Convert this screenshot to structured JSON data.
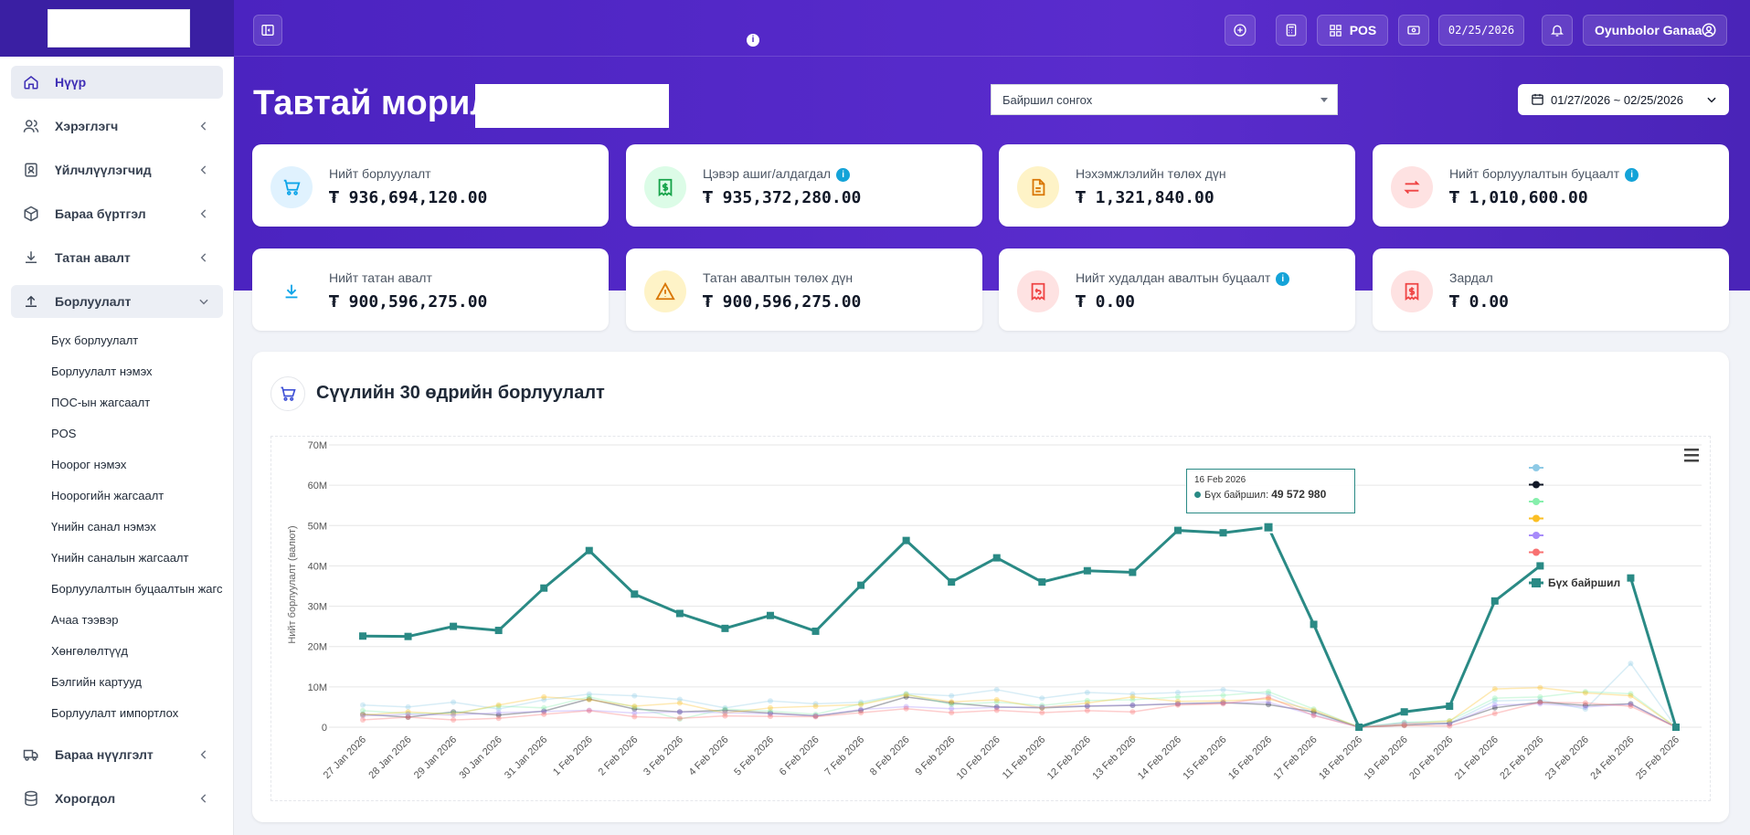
{
  "sidebar": {
    "items": [
      {
        "label": "Нүүр",
        "icon": "home-icon",
        "active": true
      },
      {
        "label": "Хэрэглэгч",
        "icon": "users-icon"
      },
      {
        "label": "Үйлчлүүлэгчид",
        "icon": "id-card-icon"
      },
      {
        "label": "Бараа бүртгэл",
        "icon": "box-icon"
      },
      {
        "label": "Татан авалт",
        "icon": "download-icon"
      },
      {
        "label": "Борлуулалт",
        "icon": "upload-icon",
        "open": true
      }
    ],
    "sub_items": [
      "Бүх борлуулалт",
      "Борлуулалт нэмэх",
      "ПОС-ын жагсаалт",
      "POS",
      "Ноорог нэмэх",
      "Ноорогийн жагсаалт",
      "Үнийн санал нэмэх",
      "Үнийн саналын жагсаалт",
      "Борлуулалтын буцаалтын жагсаалт",
      "Ачаа тээвэр",
      "Хөнгөлөлтүүд",
      "Бэлгийн картууд",
      "Борлуулалт импортлох"
    ],
    "bottom_items": [
      {
        "label": "Бараа нүүлгэлт",
        "icon": "truck-icon"
      },
      {
        "label": "Хорогдол",
        "icon": "database-icon"
      }
    ]
  },
  "header": {
    "pos_label": "POS",
    "date": "02/25/2026",
    "user_name": "Oyunbolor Ganaa",
    "welcome": "Тавтай морил",
    "location_placeholder": "Байршил сонгох",
    "date_range": "01/27/2026 ~ 02/25/2026"
  },
  "cards": [
    {
      "label": "Нийт борлуулалт",
      "value": "₮ 936,694,120.00",
      "info": false,
      "color": "#0ea5e9",
      "bg": "#e0f2fe"
    },
    {
      "label": "Цэвэр ашиг/алдагдал",
      "value": "₮ 935,372,280.00",
      "info": true,
      "color": "#16a34a",
      "bg": "#dcfce7"
    },
    {
      "label": "Нэхэмжлэлийн төлөх дүн",
      "value": "₮ 1,321,840.00",
      "info": false,
      "color": "#d97706",
      "bg": "#fef3c7"
    },
    {
      "label": "Нийт борлуулалтын буцаалт",
      "value": "₮ 1,010,600.00",
      "info": true,
      "color": "#ef4444",
      "bg": "#fee2e2"
    },
    {
      "label": "Нийт татан авалт",
      "value": "₮ 900,596,275.00",
      "info": false,
      "color": "#0ea5e9",
      "bg": "#ffffff"
    },
    {
      "label": "Татан авалтын төлөх дүн",
      "value": "₮ 900,596,275.00",
      "info": false,
      "color": "#d97706",
      "bg": "#fef3c7"
    },
    {
      "label": "Нийт худалдан авалтын буцаалт",
      "value": "₮ 0.00",
      "info": true,
      "color": "#ef4444",
      "bg": "#fee2e2"
    },
    {
      "label": "Зардал",
      "value": "₮ 0.00",
      "info": false,
      "color": "#ef4444",
      "bg": "#fee2e2"
    }
  ],
  "chart_title": "Сүүлийн 30 өдрийн борлуулалт",
  "tooltip": {
    "date": "16 Feb 2026",
    "series": "Бүх байршил:",
    "value": "49 572 980"
  },
  "chart_data": {
    "type": "line",
    "title": "Сүүлийн 30 өдрийн борлуулалт",
    "ylabel": "Нийт борлуулалт (валют)",
    "ylim": [
      0,
      70000000
    ],
    "yticks": [
      "0",
      "10M",
      "20M",
      "30M",
      "40M",
      "50M",
      "60M",
      "70M"
    ],
    "categories": [
      "27 Jan 2026",
      "28 Jan 2026",
      "29 Jan 2026",
      "30 Jan 2026",
      "31 Jan 2026",
      "1 Feb 2026",
      "2 Feb 2026",
      "3 Feb 2026",
      "4 Feb 2026",
      "5 Feb 2026",
      "6 Feb 2026",
      "7 Feb 2026",
      "8 Feb 2026",
      "9 Feb 2026",
      "10 Feb 2026",
      "11 Feb 2026",
      "12 Feb 2026",
      "13 Feb 2026",
      "14 Feb 2026",
      "15 Feb 2026",
      "16 Feb 2026",
      "17 Feb 2026",
      "18 Feb 2026",
      "19 Feb 2026",
      "20 Feb 2026",
      "21 Feb 2026",
      "22 Feb 2026",
      "23 Feb 2026",
      "24 Feb 2026",
      "25 Feb 2026"
    ],
    "series": [
      {
        "name": "Бүх байршил",
        "color": "#2a8a85",
        "values": [
          22600000,
          22500000,
          25000000,
          24000000,
          34500000,
          43800000,
          33000000,
          28200000,
          24500000,
          27700000,
          23800000,
          35200000,
          46300000,
          36000000,
          42000000,
          36000000,
          38800000,
          38400000,
          48800000,
          48200000,
          49572980,
          25500000,
          0,
          3800000,
          5200000,
          31300000,
          40000000,
          null,
          37000000,
          0
        ]
      },
      {
        "color": "#8ecae6",
        "values": [
          5500000,
          5000000,
          6200000,
          4500000,
          6800000,
          8200000,
          7800000,
          6900000,
          4800000,
          6500000,
          5800000,
          6200000,
          8300000,
          7800000,
          9300000,
          7200000,
          8600000,
          8200000,
          8600000,
          9300000,
          8200000,
          3500000,
          0,
          1200000,
          1000000,
          6500000,
          6800000,
          4500000,
          15800000,
          0
        ]
      },
      {
        "color": "#111827",
        "values": [
          3200000,
          2500000,
          3800000,
          3000000,
          4000000,
          7000000,
          4500000,
          3800000,
          4200000,
          3500000,
          2800000,
          4200000,
          7500000,
          6000000,
          5000000,
          4800000,
          5200000,
          5400000,
          5800000,
          6100000,
          5600000,
          3800000,
          0,
          500000,
          1000000,
          4800000,
          6200000,
          5400000,
          5800000,
          0
        ]
      },
      {
        "color": "#86efac",
        "values": [
          4100000,
          3400000,
          3500000,
          5200000,
          4800000,
          7500000,
          5000000,
          2000000,
          4500000,
          4000000,
          3200000,
          5800000,
          8200000,
          5600000,
          6200000,
          5400000,
          6600000,
          6800000,
          7500000,
          7900000,
          8800000,
          4500000,
          0,
          1200000,
          1600000,
          7200000,
          7500000,
          8800000,
          8300000,
          0
        ]
      },
      {
        "color": "#fbbf24",
        "values": [
          3000000,
          3800000,
          3200000,
          5500000,
          7500000,
          6800000,
          5200000,
          6000000,
          3500000,
          4800000,
          5200000,
          5600000,
          8000000,
          6300000,
          6800000,
          4800000,
          6000000,
          7500000,
          6400000,
          6500000,
          7000000,
          4200000,
          0,
          800000,
          1500000,
          9500000,
          9800000,
          8500000,
          7800000,
          0
        ]
      },
      {
        "color": "#a78bfa",
        "values": [
          2800000,
          3200000,
          3000000,
          3600000,
          3900000,
          4200000,
          3500000,
          3800000,
          3600000,
          3300000,
          2800000,
          4400000,
          5100000,
          4600000,
          4900000,
          5000000,
          5300000,
          5500000,
          5800000,
          6000000,
          6200000,
          3000000,
          0,
          900000,
          800000,
          5500000,
          5800000,
          5000000,
          5700000,
          0
        ]
      },
      {
        "color": "#f87171",
        "values": [
          1800000,
          2500000,
          1800000,
          2200000,
          3200000,
          4100000,
          2600000,
          2200000,
          2800000,
          2700000,
          2600000,
          3600000,
          4600000,
          3600000,
          4200000,
          3600000,
          4100000,
          3800000,
          5500000,
          5800000,
          7400000,
          2900000,
          0,
          400000,
          300000,
          3400000,
          6200000,
          6000000,
          5200000,
          0
        ]
      }
    ]
  }
}
